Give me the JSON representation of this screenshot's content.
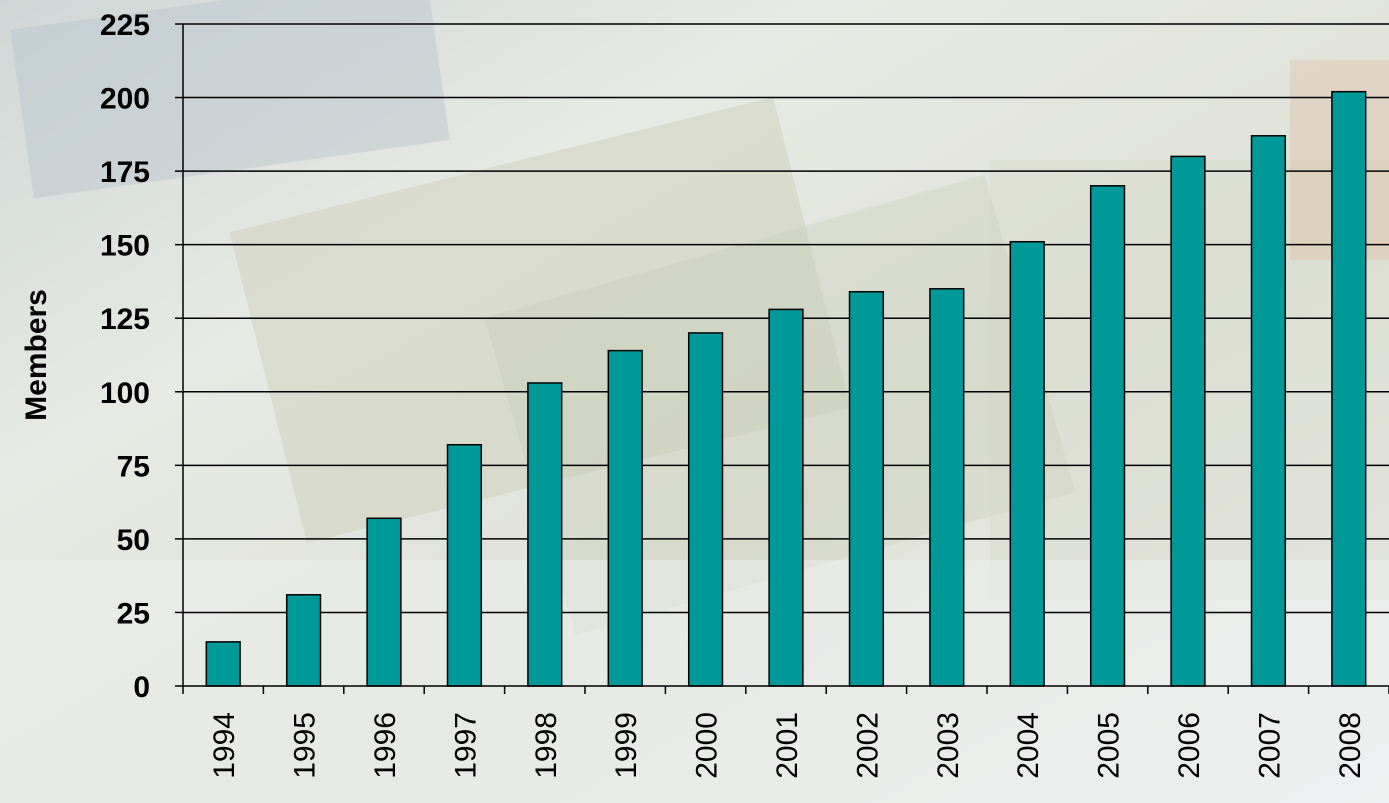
{
  "chart_data": {
    "type": "bar",
    "title": "",
    "xlabel": "",
    "ylabel": "Members",
    "categories": [
      "1994",
      "1995",
      "1996",
      "1997",
      "1998",
      "1999",
      "2000",
      "2001",
      "2002",
      "2003",
      "2004",
      "2005",
      "2006",
      "2007",
      "2008"
    ],
    "values": [
      15,
      31,
      57,
      82,
      103,
      114,
      120,
      128,
      134,
      135,
      151,
      170,
      180,
      187,
      202
    ],
    "ylim": [
      0,
      225
    ],
    "yticks": [
      "0",
      "25",
      "50",
      "75",
      "100",
      "125",
      "150",
      "175",
      "200",
      "225"
    ],
    "grid": true,
    "legend": "none",
    "colors": {
      "bar": "#009999",
      "bar_outline": "#000000",
      "grid": "#000000",
      "text": "#000000",
      "background": "#ffffff"
    }
  }
}
